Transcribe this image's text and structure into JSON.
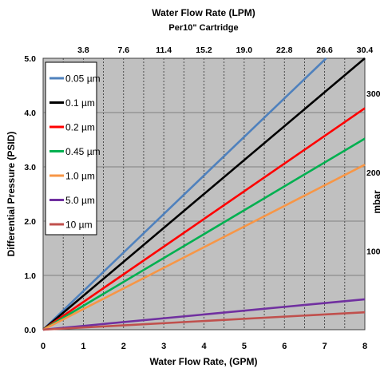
{
  "chart_data": {
    "type": "line",
    "title": "Water Flow Rate (LPM)",
    "subtitle": "Per10\" Cartridge",
    "xlabel": "Water Flow Rate, (GPM)",
    "ylabel": "Differential Pressure (PSID)",
    "ylabel_right": "mbar",
    "xlim": [
      0,
      8
    ],
    "ylim": [
      0,
      5
    ],
    "x_ticks": [
      "0",
      "1",
      "2",
      "3",
      "4",
      "5",
      "6",
      "7",
      "8"
    ],
    "y_ticks": [
      "0.0",
      "1.0",
      "2.0",
      "3.0",
      "4.0",
      "5.0"
    ],
    "top_ticks": [
      {
        "x": 1,
        "label": "3.8"
      },
      {
        "x": 2,
        "label": "7.6"
      },
      {
        "x": 3,
        "label": "11.4"
      },
      {
        "x": 4,
        "label": "15.2"
      },
      {
        "x": 5,
        "label": "19.0"
      },
      {
        "x": 6,
        "label": "22.8"
      },
      {
        "x": 7,
        "label": "26.6"
      },
      {
        "x": 8,
        "label": "30.4"
      }
    ],
    "right_ticks": [
      {
        "y": 1.45,
        "label": "100"
      },
      {
        "y": 2.9,
        "label": "200"
      },
      {
        "y": 4.35,
        "label": "300"
      }
    ],
    "grid": true,
    "legend_position": "top-left",
    "series": [
      {
        "name": "0.05 µm",
        "color": "#4f81bd",
        "x": [
          0,
          7.04
        ],
        "y": [
          0,
          5.0
        ]
      },
      {
        "name": "0.1 µm",
        "color": "#000000",
        "x": [
          0,
          8
        ],
        "y": [
          0,
          5.0
        ]
      },
      {
        "name": "0.2 µm",
        "color": "#ff0000",
        "x": [
          0,
          8
        ],
        "y": [
          0,
          4.08
        ]
      },
      {
        "name": "0.45 µm",
        "color": "#00b050",
        "x": [
          0,
          8
        ],
        "y": [
          0,
          3.52
        ]
      },
      {
        "name": "1.0 µm",
        "color": "#f79646",
        "x": [
          0,
          8
        ],
        "y": [
          0,
          3.04
        ]
      },
      {
        "name": "5.0 µm",
        "color": "#7030a0",
        "x": [
          0,
          8
        ],
        "y": [
          0,
          0.56
        ]
      },
      {
        "name": "10 µm",
        "color": "#c0504d",
        "x": [
          0,
          8
        ],
        "y": [
          0,
          0.32
        ]
      }
    ]
  }
}
